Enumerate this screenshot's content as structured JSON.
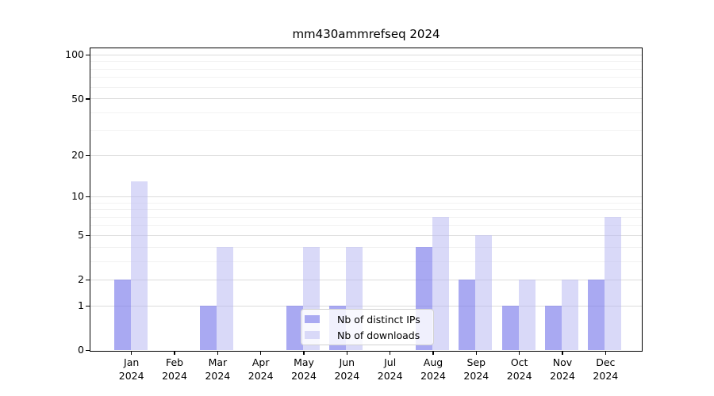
{
  "chart_data": {
    "type": "bar",
    "title": "mm430ammrefseq 2024",
    "categories": [
      "Jan",
      "Feb",
      "Mar",
      "Apr",
      "May",
      "Jun",
      "Jul",
      "Aug",
      "Sep",
      "Oct",
      "Nov",
      "Dec"
    ],
    "year_label": "2024",
    "series": [
      {
        "name": "Nb of distinct IPs",
        "values": [
          2,
          0,
          1,
          0,
          1,
          1,
          0,
          4,
          2,
          1,
          1,
          2
        ],
        "color": "rgba(125,125,235,0.66)",
        "legend_color": "#a9a9f2"
      },
      {
        "name": "Nb of downloads",
        "values": [
          13,
          0,
          4,
          0,
          4,
          4,
          0,
          7,
          5,
          2,
          2,
          7
        ],
        "color": "rgba(179,179,241,0.5)",
        "legend_color": "#d9d9f8"
      }
    ],
    "yscale": "log1p",
    "y_ticks": [
      0,
      1,
      2,
      5,
      10,
      20,
      50,
      100
    ],
    "y_minor_gridlines": [
      3,
      4,
      6,
      7,
      8,
      9,
      30,
      40,
      60,
      70,
      80,
      90
    ],
    "ylim": [
      0,
      111
    ],
    "grid": "horizontal",
    "legend_position": "inside-lower-center"
  }
}
